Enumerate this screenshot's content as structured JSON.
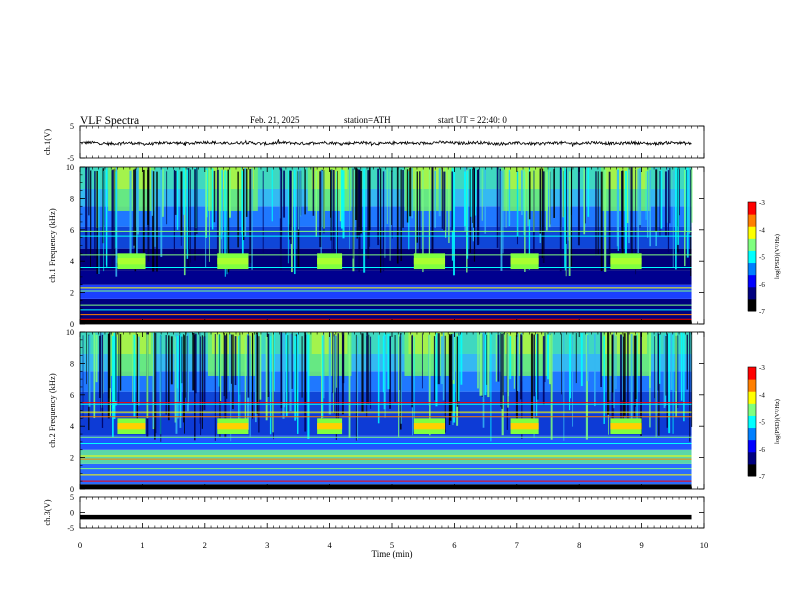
{
  "header": {
    "title": "VLF Spectra",
    "date": "Feb. 21, 2025",
    "station": "station=ATH",
    "start": "start UT =  22:40: 0"
  },
  "colors": {
    "scale": [
      "#000000",
      "#00007f",
      "#0000ff",
      "#007fff",
      "#00ffff",
      "#7fff7f",
      "#ffff00",
      "#ff7f00",
      "#ff0000",
      "#ffffff"
    ]
  },
  "chart_data": [
    {
      "type": "line",
      "name": "ch1-waveform",
      "ylabel": "ch.1(V)",
      "ylim": [
        -5,
        5
      ],
      "yticks": [
        "5",
        "-5"
      ],
      "x": [
        0,
        1,
        2,
        3,
        4,
        5,
        6,
        7,
        8,
        9,
        9.8
      ],
      "y": [
        -0.3,
        -0.5,
        -0.2,
        -0.4,
        -0.3,
        -0.4,
        -0.2,
        -0.5,
        -0.3,
        -0.4,
        -0.3
      ]
    },
    {
      "type": "heatmap",
      "name": "ch1-spectrogram",
      "ylabel": "ch.1 Frequency (kHz)",
      "ylim": [
        0,
        10
      ],
      "yticks": [
        "0",
        "2",
        "4",
        "6",
        "8",
        "10"
      ],
      "colorbar_label": "log(PSD)(V²/Hz)",
      "colorbar_range": [
        -7,
        -3
      ],
      "colorbar_ticks": [
        "-3",
        "-4",
        "-5",
        "-6",
        "-7"
      ],
      "tone_bursts": [
        {
          "start": 0.6,
          "end": 1.05,
          "f_low": 3.5,
          "f_high": 4.5
        },
        {
          "start": 2.2,
          "end": 2.7,
          "f_low": 3.5,
          "f_high": 4.5
        },
        {
          "start": 3.8,
          "end": 4.2,
          "f_low": 3.5,
          "f_high": 4.5
        },
        {
          "start": 5.35,
          "end": 5.85,
          "f_low": 3.5,
          "f_high": 4.5
        },
        {
          "start": 6.9,
          "end": 7.35,
          "f_low": 3.5,
          "f_high": 4.5
        },
        {
          "start": 8.5,
          "end": 9.0,
          "f_low": 3.5,
          "f_high": 4.5
        }
      ]
    },
    {
      "type": "heatmap",
      "name": "ch2-spectrogram",
      "ylabel": "ch.2 Frequency (kHz)",
      "ylim": [
        0,
        10
      ],
      "yticks": [
        "0",
        "2",
        "4",
        "6",
        "8",
        "10"
      ],
      "colorbar_label": "log(PSD)(V²/Hz)",
      "colorbar_range": [
        -7,
        -3
      ],
      "colorbar_ticks": [
        "-3",
        "-4",
        "-5",
        "-6",
        "-7"
      ],
      "tone_bursts": [
        {
          "start": 0.6,
          "end": 1.05,
          "f_low": 3.5,
          "f_high": 4.5
        },
        {
          "start": 2.2,
          "end": 2.7,
          "f_low": 3.5,
          "f_high": 4.5
        },
        {
          "start": 3.8,
          "end": 4.2,
          "f_low": 3.5,
          "f_high": 4.5
        },
        {
          "start": 5.35,
          "end": 5.85,
          "f_low": 3.5,
          "f_high": 4.5
        },
        {
          "start": 6.9,
          "end": 7.35,
          "f_low": 3.5,
          "f_high": 4.5
        },
        {
          "start": 8.5,
          "end": 9.0,
          "f_low": 3.5,
          "f_high": 4.5
        }
      ]
    },
    {
      "type": "line",
      "name": "ch3-waveform",
      "ylabel": "ch.3(V)",
      "ylim": [
        -5,
        5
      ],
      "yticks": [
        "5",
        "0",
        "-5"
      ],
      "x": [
        0,
        9.8
      ],
      "y": [
        -1.5,
        -1.5
      ]
    }
  ],
  "xaxis": {
    "label": "Time (min)",
    "range": [
      0,
      10
    ],
    "ticks": [
      "0",
      "1",
      "2",
      "3",
      "4",
      "5",
      "6",
      "7",
      "8",
      "9",
      "10"
    ]
  }
}
